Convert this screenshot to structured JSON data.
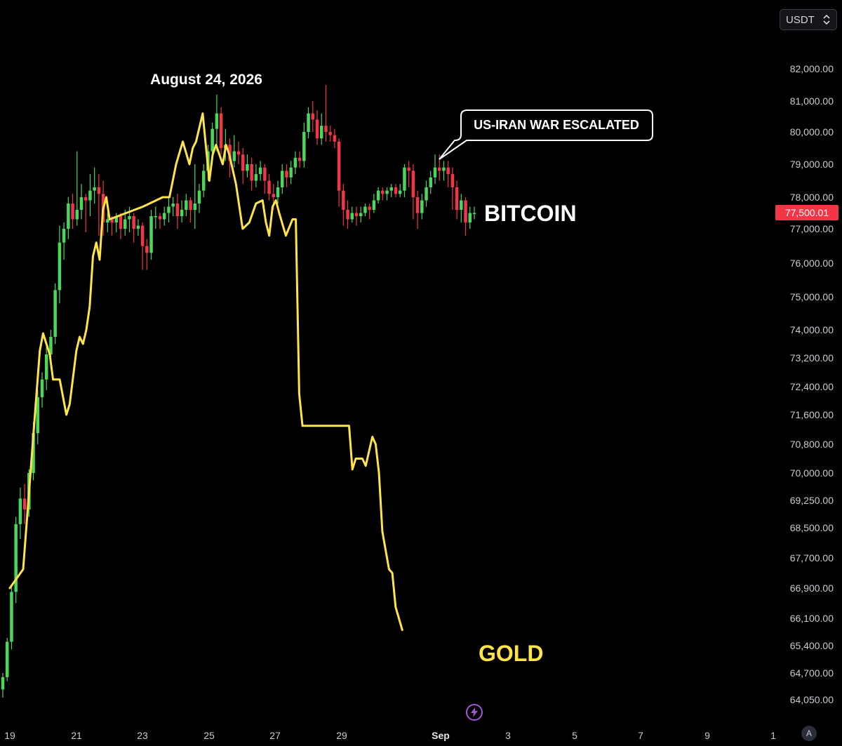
{
  "toolbar": {
    "currency": "USDT",
    "currency_chevron_icon": "chevron-up-down-icon"
  },
  "price_tag": "77,500.01",
  "bottom_badge": "A",
  "bolt_icon": "lightning-bolt-icon",
  "colors": {
    "background": "#000000",
    "candle_up": "#4cd65a",
    "candle_down": "#f23645",
    "gold_line": "#ffe34a",
    "text": "#c9cbd1"
  },
  "chart_data": {
    "type": "line",
    "x_unit": "days in August–September (Aug 19 = 0)",
    "y_ticks": [
      "82,000.00",
      "81,000.00",
      "80,000.00",
      "79,000.00",
      "78,000.00",
      "77,000.00",
      "76,000.00",
      "75,000.00",
      "74,000.00",
      "73,200.00",
      "72,400.00",
      "71,600.00",
      "70,800.00",
      "70,000.00",
      "69,250.00",
      "68,500.00",
      "67,700.00",
      "66,900.00",
      "66,100.00",
      "65,400.00",
      "64,700.00",
      "64,050.00"
    ],
    "x_ticks": [
      {
        "label": "19",
        "bold": false
      },
      {
        "label": "21",
        "bold": false
      },
      {
        "label": "23",
        "bold": false
      },
      {
        "label": "25",
        "bold": false
      },
      {
        "label": "27",
        "bold": false
      },
      {
        "label": "29",
        "bold": false
      },
      {
        "label": "Sep",
        "bold": true
      },
      {
        "label": "3",
        "bold": false
      },
      {
        "label": "5",
        "bold": false
      },
      {
        "label": "7",
        "bold": false
      },
      {
        "label": "9",
        "bold": false
      },
      {
        "label": "1",
        "bold": false
      }
    ],
    "annotations": {
      "date_label": "August 24, 2026",
      "event_label": "US-IRAN WAR ESCALATED"
    },
    "series": [
      {
        "name": "BITCOIN",
        "kind": "candlestick",
        "candles": [
          [
            64300,
            64600,
            64100,
            64700
          ],
          [
            64600,
            65500,
            64500,
            65600
          ],
          [
            65500,
            66800,
            65300,
            67000
          ],
          [
            66800,
            68600,
            66500,
            68800
          ],
          [
            68600,
            69300,
            68200,
            69600
          ],
          [
            69300,
            69000,
            68600,
            69700
          ],
          [
            69000,
            70000,
            68800,
            70100
          ],
          [
            70000,
            71100,
            69800,
            71400
          ],
          [
            71100,
            72100,
            70800,
            72300
          ],
          [
            72100,
            72600,
            71800,
            72800
          ],
          [
            72600,
            73300,
            72300,
            73600
          ],
          [
            73300,
            73800,
            72900,
            74000
          ],
          [
            73800,
            75200,
            73600,
            75400
          ],
          [
            75200,
            76600,
            74800,
            77100
          ],
          [
            76600,
            77000,
            76100,
            77200
          ],
          [
            77000,
            77800,
            76700,
            78000
          ],
          [
            77800,
            77300,
            77000,
            78100
          ],
          [
            77300,
            77600,
            77100,
            79400
          ],
          [
            77600,
            78000,
            77300,
            78400
          ],
          [
            78000,
            77900,
            76900,
            78100
          ],
          [
            77900,
            78200,
            77400,
            78700
          ],
          [
            78200,
            78300,
            77800,
            78900
          ],
          [
            78300,
            78100,
            76800,
            78700
          ],
          [
            78100,
            77200,
            76800,
            78500
          ],
          [
            77200,
            77300,
            76900,
            77500
          ],
          [
            77300,
            77200,
            76800,
            77400
          ],
          [
            77200,
            77400,
            76900,
            77500
          ],
          [
            77400,
            77000,
            76700,
            77500
          ],
          [
            77000,
            77300,
            76800,
            77600
          ],
          [
            77300,
            77400,
            76900,
            77700
          ],
          [
            77400,
            77000,
            76600,
            77500
          ],
          [
            77000,
            77100,
            76800,
            77300
          ],
          [
            77100,
            76500,
            75800,
            77200
          ],
          [
            76500,
            76300,
            75800,
            76700
          ],
          [
            76300,
            77400,
            76100,
            77600
          ],
          [
            77400,
            77400,
            77000,
            77700
          ],
          [
            77400,
            77300,
            77000,
            77500
          ],
          [
            77300,
            77500,
            77100,
            77700
          ],
          [
            77500,
            77700,
            77200,
            78000
          ],
          [
            77700,
            77800,
            77400,
            78000
          ],
          [
            77800,
            77400,
            77000,
            78100
          ],
          [
            77400,
            77600,
            77200,
            77900
          ],
          [
            77600,
            77900,
            77400,
            78100
          ],
          [
            77900,
            77600,
            77200,
            78000
          ],
          [
            77600,
            77800,
            77000,
            79000
          ],
          [
            77800,
            78200,
            77500,
            78400
          ],
          [
            78200,
            78800,
            78000,
            79000
          ],
          [
            78800,
            79400,
            78500,
            79600
          ],
          [
            79400,
            80100,
            79100,
            80300
          ],
          [
            80100,
            80600,
            79400,
            81200
          ],
          [
            80600,
            79500,
            79300,
            80800
          ],
          [
            79500,
            79600,
            79100,
            80100
          ],
          [
            79600,
            79100,
            78600,
            79800
          ],
          [
            79100,
            79400,
            78900,
            79900
          ],
          [
            79400,
            79300,
            79000,
            79700
          ],
          [
            79300,
            78800,
            78400,
            79500
          ],
          [
            78800,
            79000,
            78600,
            79300
          ],
          [
            79000,
            78500,
            78200,
            79200
          ],
          [
            78500,
            78700,
            78300,
            79000
          ],
          [
            78700,
            78900,
            78500,
            79100
          ],
          [
            78900,
            78500,
            78100,
            79000
          ],
          [
            78500,
            78100,
            77900,
            78700
          ],
          [
            78100,
            78000,
            77600,
            78400
          ],
          [
            78000,
            78300,
            77800,
            78500
          ],
          [
            78300,
            78800,
            78100,
            79000
          ],
          [
            78800,
            78600,
            78300,
            79000
          ],
          [
            78600,
            78900,
            78400,
            79100
          ],
          [
            78900,
            79200,
            78700,
            79400
          ],
          [
            79200,
            79100,
            78900,
            79400
          ],
          [
            79100,
            80000,
            78900,
            80300
          ],
          [
            80000,
            80600,
            79800,
            80800
          ],
          [
            80600,
            80400,
            80000,
            81000
          ],
          [
            80400,
            79800,
            79600,
            80700
          ],
          [
            79800,
            80200,
            79600,
            80600
          ],
          [
            80200,
            80000,
            79700,
            81500
          ],
          [
            80000,
            79900,
            79700,
            80200
          ],
          [
            79900,
            79700,
            79500,
            80100
          ],
          [
            79700,
            78200,
            77700,
            79800
          ],
          [
            78200,
            77600,
            77100,
            78400
          ],
          [
            77600,
            77300,
            77000,
            77900
          ],
          [
            77300,
            77500,
            77200,
            77700
          ],
          [
            77500,
            77400,
            77100,
            77700
          ],
          [
            77400,
            77500,
            77200,
            77700
          ],
          [
            77500,
            77700,
            77400,
            77800
          ],
          [
            77700,
            77600,
            77300,
            77800
          ],
          [
            77600,
            77900,
            77500,
            78100
          ],
          [
            77900,
            78200,
            77800,
            78300
          ],
          [
            78200,
            78100,
            77900,
            78300
          ],
          [
            78100,
            78200,
            77900,
            78300
          ],
          [
            78200,
            78300,
            78000,
            78400
          ],
          [
            78300,
            78100,
            78000,
            78400
          ],
          [
            78100,
            78200,
            78000,
            78400
          ],
          [
            78200,
            78900,
            78000,
            79000
          ],
          [
            78900,
            78800,
            78300,
            79100
          ],
          [
            78800,
            78000,
            77300,
            79000
          ],
          [
            78000,
            77500,
            77000,
            78200
          ],
          [
            77500,
            77900,
            77300,
            78100
          ],
          [
            77900,
            78300,
            77700,
            78500
          ],
          [
            78300,
            78600,
            78100,
            78800
          ],
          [
            78600,
            78900,
            78400,
            79300
          ],
          [
            78900,
            78800,
            78500,
            79300
          ],
          [
            78800,
            78900,
            78500,
            79100
          ],
          [
            78900,
            78700,
            78300,
            79100
          ],
          [
            78700,
            78300,
            77600,
            78900
          ],
          [
            78300,
            77600,
            77300,
            78500
          ],
          [
            77600,
            77900,
            77200,
            78100
          ],
          [
            77900,
            77200,
            76800,
            78000
          ],
          [
            77200,
            77500,
            77000,
            77700
          ],
          [
            77500,
            77500,
            77300,
            77700
          ]
        ],
        "label": "BITCOIN"
      },
      {
        "name": "GOLD",
        "kind": "line",
        "points": [
          [
            0,
            66900
          ],
          [
            0.4,
            67400
          ],
          [
            0.9,
            73400
          ],
          [
            1.0,
            73900
          ],
          [
            1.2,
            73300
          ],
          [
            1.3,
            72600
          ],
          [
            1.5,
            72600
          ],
          [
            1.7,
            71600
          ],
          [
            1.8,
            71900
          ],
          [
            2.0,
            73400
          ],
          [
            2.1,
            73800
          ],
          [
            2.2,
            73600
          ],
          [
            2.3,
            74000
          ],
          [
            2.4,
            74700
          ],
          [
            2.5,
            76200
          ],
          [
            2.6,
            76600
          ],
          [
            2.7,
            76100
          ],
          [
            2.8,
            77600
          ],
          [
            2.9,
            78000
          ],
          [
            3.0,
            77300
          ],
          [
            4.0,
            77700
          ],
          [
            4.6,
            78000
          ],
          [
            4.8,
            78000
          ],
          [
            5.0,
            79000
          ],
          [
            5.2,
            79700
          ],
          [
            5.4,
            79000
          ],
          [
            5.5,
            79500
          ],
          [
            5.6,
            79700
          ],
          [
            5.8,
            80600
          ],
          [
            5.9,
            79500
          ],
          [
            6.0,
            78500
          ],
          [
            6.1,
            79300
          ],
          [
            6.2,
            79600
          ],
          [
            6.4,
            79000
          ],
          [
            6.5,
            79600
          ],
          [
            6.6,
            79300
          ],
          [
            6.8,
            78400
          ],
          [
            7.0,
            77000
          ],
          [
            7.2,
            77200
          ],
          [
            7.4,
            77800
          ],
          [
            7.6,
            77900
          ],
          [
            7.7,
            77200
          ],
          [
            7.8,
            76800
          ],
          [
            7.9,
            77700
          ],
          [
            8.0,
            77900
          ],
          [
            8.1,
            77500
          ],
          [
            8.3,
            76800
          ],
          [
            8.5,
            77300
          ],
          [
            8.6,
            77300
          ],
          [
            8.7,
            72200
          ],
          [
            8.8,
            71300
          ],
          [
            10.2,
            71300
          ],
          [
            10.3,
            70100
          ],
          [
            10.4,
            70400
          ],
          [
            10.6,
            70400
          ],
          [
            10.7,
            70200
          ],
          [
            10.9,
            71000
          ],
          [
            11.0,
            70800
          ],
          [
            11.1,
            70000
          ],
          [
            11.2,
            68400
          ],
          [
            11.4,
            67400
          ],
          [
            11.5,
            67300
          ],
          [
            11.6,
            66400
          ],
          [
            11.8,
            65800
          ]
        ],
        "label": "GOLD"
      }
    ]
  }
}
